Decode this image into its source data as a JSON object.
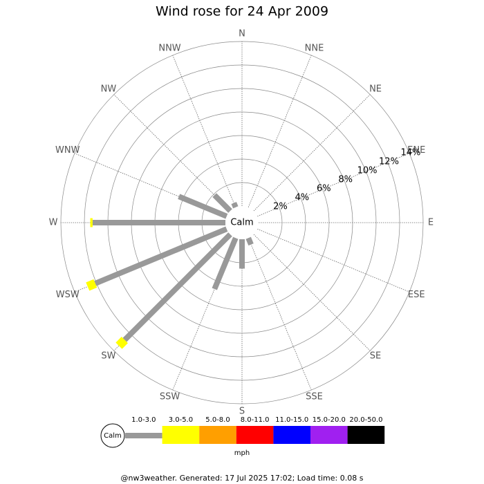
{
  "chart_data": {
    "type": "windrose",
    "title": "Wind rose for 24 Apr 2009",
    "categories": [
      "N",
      "NNE",
      "NE",
      "ENE",
      "E",
      "ESE",
      "SE",
      "SSE",
      "S",
      "SSW",
      "SW",
      "WSW",
      "W",
      "WNW",
      "NW",
      "NNW"
    ],
    "series": [
      {
        "name": "1.0-3.0",
        "color": "#999999",
        "values": [
          0,
          0,
          0,
          0,
          0,
          0,
          0,
          0.6,
          2.5,
          4.7,
          12.7,
          12.1,
          11.3,
          4.4,
          1.9,
          0.4
        ]
      },
      {
        "name": "3.0-5.0",
        "color": "#ffff00",
        "values": [
          0,
          0,
          0,
          0,
          0,
          0,
          0,
          0,
          0,
          0,
          0.7,
          0.7,
          0.2,
          0,
          0,
          0
        ]
      },
      {
        "name": "5.0-8.0",
        "color": "#ff9f00",
        "values": [
          0,
          0,
          0,
          0,
          0,
          0,
          0,
          0,
          0,
          0,
          0,
          0,
          0,
          0,
          0,
          0
        ]
      },
      {
        "name": "8.0-11.0",
        "color": "#ff0000",
        "values": [
          0,
          0,
          0,
          0,
          0,
          0,
          0,
          0,
          0,
          0,
          0,
          0,
          0,
          0,
          0,
          0
        ]
      },
      {
        "name": "11.0-15.0",
        "color": "#0000ff",
        "values": [
          0,
          0,
          0,
          0,
          0,
          0,
          0,
          0,
          0,
          0,
          0,
          0,
          0,
          0,
          0,
          0
        ]
      },
      {
        "name": "15.0-20.0",
        "color": "#a020f0",
        "values": [
          0,
          0,
          0,
          0,
          0,
          0,
          0,
          0,
          0,
          0,
          0,
          0,
          0,
          0,
          0,
          0
        ]
      },
      {
        "name": "20.0-50.0",
        "color": "#000000",
        "values": [
          0,
          0,
          0,
          0,
          0,
          0,
          0,
          0,
          0,
          0,
          0,
          0,
          0,
          0,
          0,
          0
        ]
      }
    ],
    "rlim": [
      0,
      14
    ],
    "rticks": [
      {
        "value": 2,
        "label": "2%"
      },
      {
        "value": 4,
        "label": "4%"
      },
      {
        "value": 6,
        "label": "6%"
      },
      {
        "value": 8,
        "label": "8%"
      },
      {
        "value": 10,
        "label": "10%"
      },
      {
        "value": 12,
        "label": "12%"
      },
      {
        "value": 14,
        "label": "14%"
      }
    ],
    "calm_label": "Calm",
    "unit": "mph",
    "footer": "@nw3weather.  Generated: 17 Jul 2025 17:02; Load time: 0.08 s"
  }
}
